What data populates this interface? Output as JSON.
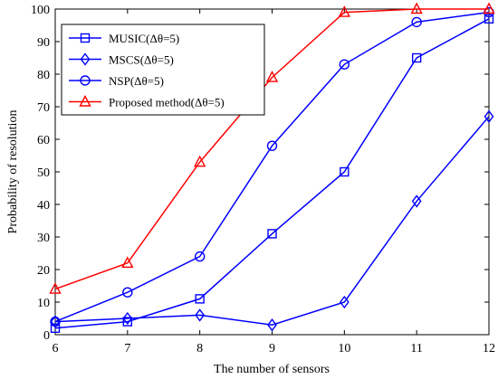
{
  "chart_data": {
    "type": "line",
    "xlabel": "The number of sensors",
    "ylabel": "Probability of resolution",
    "x": [
      6,
      7,
      8,
      9,
      10,
      11,
      12
    ],
    "xlim": [
      6,
      12
    ],
    "ylim": [
      0,
      100
    ],
    "xticks": [
      6,
      7,
      8,
      9,
      10,
      11,
      12
    ],
    "yticks": [
      0,
      10,
      20,
      30,
      40,
      50,
      60,
      70,
      80,
      90,
      100
    ],
    "grid": false,
    "legend_position": "top-left",
    "series": [
      {
        "name": "MUSIC(Δθ=5)",
        "color": "#0000ff",
        "marker": "square",
        "values": [
          2,
          4,
          11,
          31,
          50,
          85,
          97
        ]
      },
      {
        "name": "MSCS(Δθ=5)",
        "color": "#0000ff",
        "marker": "diamond",
        "values": [
          4,
          5,
          6,
          3,
          10,
          41,
          67
        ]
      },
      {
        "name": "NSP(Δθ=5)",
        "color": "#0000ff",
        "marker": "circle",
        "values": [
          4,
          13,
          24,
          58,
          83,
          96,
          99
        ]
      },
      {
        "name": "Proposed method(Δθ=5)",
        "color": "#ff0000",
        "marker": "triangle",
        "values": [
          14,
          22,
          53,
          79,
          99,
          100,
          100
        ]
      }
    ]
  }
}
